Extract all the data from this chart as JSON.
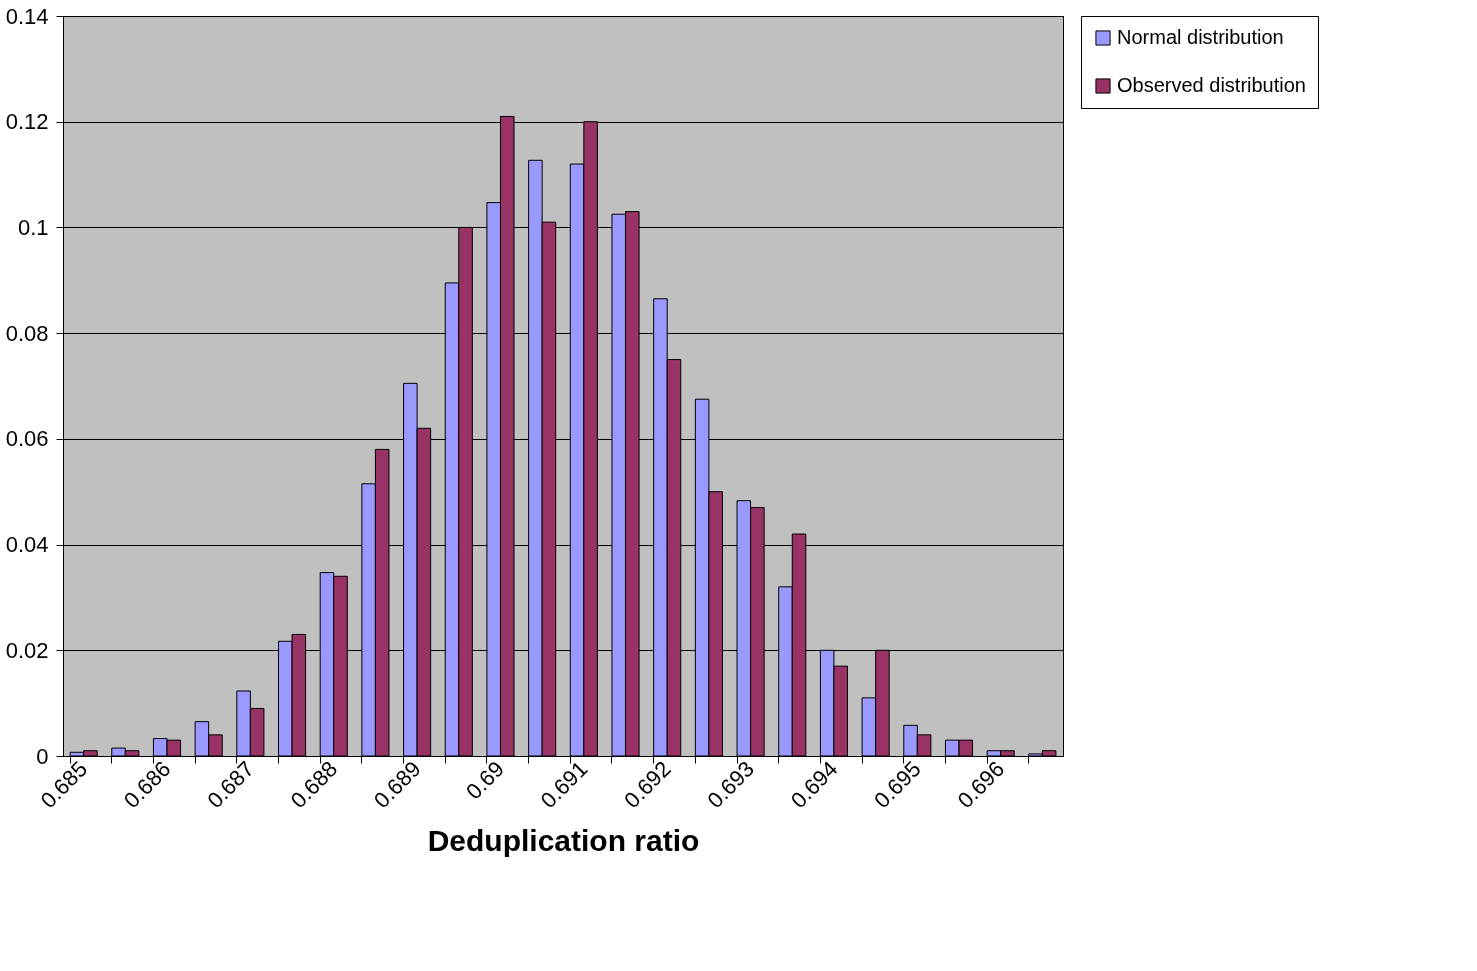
{
  "chart_data": {
    "type": "bar",
    "xlabel": "Deduplication ratio",
    "categories": [
      "0.685",
      null,
      "0.686",
      null,
      "0.687",
      null,
      "0.688",
      null,
      "0.689",
      null,
      "0.69",
      null,
      "0.691",
      null,
      "0.692",
      null,
      "0.693",
      null,
      "0.694",
      null,
      "0.695",
      null,
      "0.696",
      null
    ],
    "series": [
      {
        "name": "Normal distribution",
        "color": "#9999ff",
        "values": [
          0.0007,
          0.0015,
          0.0033,
          0.0065,
          0.0123,
          0.0217,
          0.0347,
          0.0515,
          0.0705,
          0.0895,
          0.1047,
          0.1127,
          0.112,
          0.1025,
          0.0865,
          0.0675,
          0.0483,
          0.032,
          0.02,
          0.011,
          0.0058,
          0.003,
          0.001,
          0.0004
        ]
      },
      {
        "name": "Observed distribution",
        "color": "#993366",
        "values": [
          0.001,
          0.001,
          0.003,
          0.004,
          0.009,
          0.023,
          0.034,
          0.058,
          0.062,
          0.1,
          0.121,
          0.101,
          0.12,
          0.103,
          0.075,
          0.05,
          0.047,
          0.042,
          0.017,
          0.02,
          0.004,
          0.003,
          0.001,
          0.001
        ]
      }
    ],
    "ylim": [
      0,
      0.14
    ],
    "yticks": [
      0,
      0.02,
      0.04,
      0.06,
      0.08,
      0.1,
      0.12,
      0.14
    ],
    "grid": "y",
    "legend": "right"
  }
}
